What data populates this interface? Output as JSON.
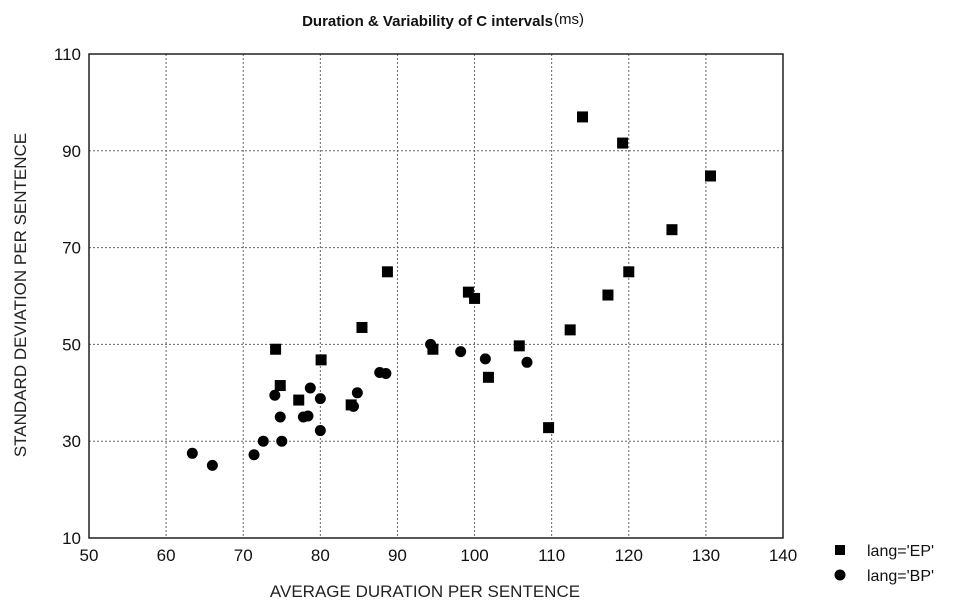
{
  "chart_data": {
    "type": "scatter",
    "title": "Duration & Variability of C intervals",
    "title_unit": "(ms)",
    "xlabel": "AVERAGE DURATION PER SENTENCE",
    "ylabel": "STANDARD DEVIATION PER SENTENCE",
    "xlim": [
      50,
      140
    ],
    "ylim": [
      10,
      110
    ],
    "xticks": [
      50,
      60,
      70,
      80,
      90,
      100,
      110,
      120,
      130,
      140
    ],
    "yticks": [
      10,
      30,
      50,
      70,
      90,
      110
    ],
    "grid": true,
    "legend_placement": "bottom-right, outside plot",
    "series": [
      {
        "name": "lang='EP'",
        "marker": "square",
        "color": "#000000",
        "points": [
          [
            74.2,
            49.0
          ],
          [
            74.8,
            41.5
          ],
          [
            77.2,
            38.5
          ],
          [
            80.1,
            46.8
          ],
          [
            84.0,
            37.5
          ],
          [
            85.4,
            53.5
          ],
          [
            88.7,
            65.0
          ],
          [
            94.6,
            49.0
          ],
          [
            99.2,
            60.8
          ],
          [
            100.0,
            59.5
          ],
          [
            101.8,
            43.2
          ],
          [
            105.8,
            49.7
          ],
          [
            109.6,
            32.8
          ],
          [
            112.4,
            53.0
          ],
          [
            114.0,
            97.0
          ],
          [
            117.3,
            60.2
          ],
          [
            119.2,
            91.6
          ],
          [
            120.0,
            65.0
          ],
          [
            125.6,
            73.7
          ],
          [
            130.6,
            84.8
          ]
        ]
      },
      {
        "name": "lang='BP'",
        "marker": "circle",
        "color": "#000000",
        "points": [
          [
            63.4,
            27.5
          ],
          [
            66.0,
            25.0
          ],
          [
            71.4,
            27.2
          ],
          [
            72.6,
            30.0
          ],
          [
            74.1,
            39.5
          ],
          [
            74.8,
            35.0
          ],
          [
            75.0,
            30.0
          ],
          [
            77.8,
            35.0
          ],
          [
            78.4,
            35.2
          ],
          [
            78.7,
            41.0
          ],
          [
            80.0,
            38.8
          ],
          [
            80.0,
            32.2
          ],
          [
            84.3,
            37.2
          ],
          [
            84.8,
            40.0
          ],
          [
            87.7,
            44.2
          ],
          [
            88.5,
            44.0
          ],
          [
            94.3,
            50.0
          ],
          [
            98.2,
            48.5
          ],
          [
            101.4,
            47.0
          ],
          [
            106.8,
            46.3
          ]
        ]
      }
    ]
  }
}
